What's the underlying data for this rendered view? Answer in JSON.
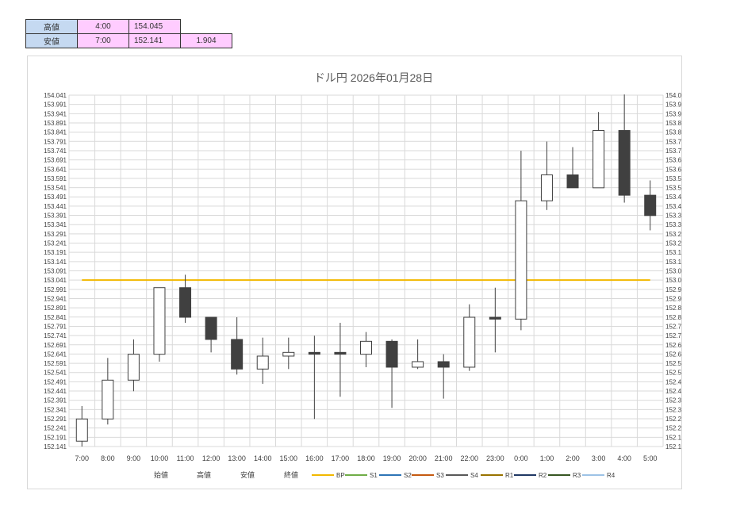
{
  "summary": {
    "high": {
      "label": "高値",
      "time": "4:00",
      "value": "154.045"
    },
    "low": {
      "label": "安値",
      "time": "7:00",
      "value": "152.141",
      "range": "1.904"
    }
  },
  "chart_data": {
    "type": "candlestick",
    "title": "ドル円  2026年01月28日",
    "categories": [
      "7:00",
      "8:00",
      "9:00",
      "10:00",
      "11:00",
      "12:00",
      "13:00",
      "14:00",
      "15:00",
      "16:00",
      "17:00",
      "18:00",
      "19:00",
      "20:00",
      "21:00",
      "22:00",
      "23:00",
      "0:00",
      "1:00",
      "2:00",
      "3:00",
      "4:00",
      "5:00"
    ],
    "ohlc": [
      {
        "o": 152.17,
        "h": 152.36,
        "l": 152.141,
        "c": 152.29
      },
      {
        "o": 152.29,
        "h": 152.62,
        "l": 152.26,
        "c": 152.5
      },
      {
        "o": 152.5,
        "h": 152.72,
        "l": 152.44,
        "c": 152.64
      },
      {
        "o": 152.64,
        "h": 153.0,
        "l": 152.6,
        "c": 153.0
      },
      {
        "o": 153.0,
        "h": 153.07,
        "l": 152.81,
        "c": 152.84
      },
      {
        "o": 152.84,
        "h": 152.84,
        "l": 152.65,
        "c": 152.72
      },
      {
        "o": 152.72,
        "h": 152.84,
        "l": 152.53,
        "c": 152.56
      },
      {
        "o": 152.56,
        "h": 152.73,
        "l": 152.48,
        "c": 152.63
      },
      {
        "o": 152.63,
        "h": 152.73,
        "l": 152.56,
        "c": 152.65
      },
      {
        "o": 152.65,
        "h": 152.74,
        "l": 152.29,
        "c": 152.64
      },
      {
        "o": 152.65,
        "h": 152.81,
        "l": 152.41,
        "c": 152.64
      },
      {
        "o": 152.64,
        "h": 152.76,
        "l": 152.57,
        "c": 152.71
      },
      {
        "o": 152.71,
        "h": 152.72,
        "l": 152.35,
        "c": 152.57
      },
      {
        "o": 152.57,
        "h": 152.72,
        "l": 152.56,
        "c": 152.6
      },
      {
        "o": 152.6,
        "h": 152.64,
        "l": 152.4,
        "c": 152.57
      },
      {
        "o": 152.57,
        "h": 152.91,
        "l": 152.55,
        "c": 152.84
      },
      {
        "o": 152.84,
        "h": 153.0,
        "l": 152.65,
        "c": 152.83
      },
      {
        "o": 152.83,
        "h": 153.74,
        "l": 152.77,
        "c": 153.47
      },
      {
        "o": 153.47,
        "h": 153.79,
        "l": 153.42,
        "c": 153.61
      },
      {
        "o": 153.61,
        "h": 153.76,
        "l": 153.54,
        "c": 153.54
      },
      {
        "o": 153.54,
        "h": 153.95,
        "l": 153.54,
        "c": 153.85
      },
      {
        "o": 153.85,
        "h": 154.045,
        "l": 153.46,
        "c": 153.5
      },
      {
        "o": 153.5,
        "h": 153.58,
        "l": 153.31,
        "c": 153.39
      }
    ],
    "bp": 153.041,
    "ylim": [
      152.141,
      154.041
    ],
    "yticks": [
      "154.041",
      "153.991",
      "153.941",
      "153.891",
      "153.841",
      "153.791",
      "153.741",
      "153.691",
      "153.641",
      "153.591",
      "153.541",
      "153.491",
      "153.441",
      "153.391",
      "153.341",
      "153.291",
      "153.241",
      "153.191",
      "153.141",
      "153.091",
      "153.041",
      "152.991",
      "152.941",
      "152.891",
      "152.841",
      "152.791",
      "152.741",
      "152.691",
      "152.641",
      "152.591",
      "152.541",
      "152.491",
      "152.441",
      "152.391",
      "152.341",
      "152.291",
      "152.241",
      "152.191",
      "152.141"
    ],
    "legend": [
      {
        "name": "始値",
        "color": ""
      },
      {
        "name": "高値",
        "color": ""
      },
      {
        "name": "安値",
        "color": ""
      },
      {
        "name": "終値",
        "color": ""
      },
      {
        "name": "BP",
        "color": "#f2b800"
      },
      {
        "name": "S1",
        "color": "#70ad47"
      },
      {
        "name": "S2",
        "color": "#2e75b6"
      },
      {
        "name": "S3",
        "color": "#c55a11"
      },
      {
        "name": "S4",
        "color": "#595959"
      },
      {
        "name": "R1",
        "color": "#997300"
      },
      {
        "name": "R2",
        "color": "#203864"
      },
      {
        "name": "R3",
        "color": "#375623"
      },
      {
        "name": "R4",
        "color": "#9dc3e6"
      }
    ],
    "colors": {
      "up": "#ffffff",
      "down": "#404040",
      "grid": "#d9d9d9",
      "bp": "#f2b800"
    }
  }
}
